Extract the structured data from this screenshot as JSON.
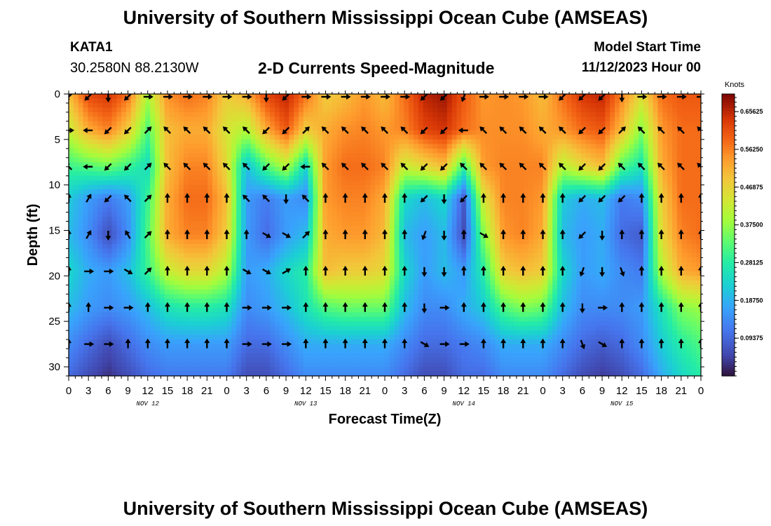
{
  "header": {
    "title": "University of Southern Mississippi Ocean Cube (AMSEAS)",
    "station_id": "KATA1",
    "coordinates": "30.2580N  88.2130W",
    "subtitle": "2-D Currents Speed-Magnitude",
    "model_start_label": "Model Start Time",
    "model_start_value": "11/12/2023 Hour 00"
  },
  "footer": {
    "title": "University of Southern Mississippi Ocean Cube (AMSEAS)"
  },
  "chart_data": {
    "type": "heatmap",
    "title": "2-D Currents Speed-Magnitude",
    "xlabel": "Forecast Time(Z)",
    "ylabel": "Depth (ft)",
    "xlim": [
      0,
      96
    ],
    "ylim": [
      31,
      0
    ],
    "x_ticks": [
      0,
      3,
      6,
      9,
      12,
      15,
      18,
      21,
      24,
      27,
      30,
      33,
      36,
      39,
      42,
      45,
      48,
      51,
      54,
      57,
      60,
      63,
      66,
      69,
      72,
      75,
      78,
      81,
      84,
      87,
      90,
      93,
      96
    ],
    "x_tick_labels": [
      "0",
      "3",
      "6",
      "9",
      "12",
      "15",
      "18",
      "21",
      "0",
      "3",
      "6",
      "9",
      "12",
      "15",
      "18",
      "21",
      "0",
      "3",
      "6",
      "9",
      "12",
      "15",
      "18",
      "21",
      "0",
      "3",
      "6",
      "9",
      "12",
      "15",
      "18",
      "21",
      "0"
    ],
    "y_ticks": [
      0,
      5,
      10,
      15,
      20,
      25,
      30
    ],
    "y_tick_labels": [
      "0",
      "5",
      "10",
      "15",
      "20",
      "25",
      "30"
    ],
    "day_labels": [
      {
        "x": 12,
        "label": "NOV 12"
      },
      {
        "x": 36,
        "label": "NOV 13"
      },
      {
        "x": 60,
        "label": "NOV 14"
      },
      {
        "x": 84,
        "label": "NOV 15"
      }
    ],
    "colorbar": {
      "unit": "Knots",
      "min": 0.0,
      "max": 0.7,
      "ticks": [
        0.09375,
        0.1875,
        0.28125,
        0.375,
        0.46875,
        0.5625,
        0.65625
      ],
      "tick_labels": [
        "0.09375",
        "0.18750",
        "0.28125",
        "0.37500",
        "0.46875",
        "0.56250",
        "0.65625"
      ]
    },
    "grid_time_hours": [
      0,
      3,
      6,
      9,
      12,
      15,
      18,
      21,
      24,
      27,
      30,
      33,
      36,
      39,
      42,
      45,
      48,
      51,
      54,
      57,
      60,
      63,
      66,
      69,
      72,
      75,
      78,
      81,
      84,
      87,
      90,
      93,
      96
    ],
    "grid_depths_ft": [
      0,
      4,
      8,
      11.5,
      15.5,
      19.5,
      23.5,
      27.5,
      31
    ],
    "speed_knots": [
      [
        0.5,
        0.62,
        0.64,
        0.58,
        0.4,
        0.55,
        0.58,
        0.56,
        0.48,
        0.52,
        0.62,
        0.66,
        0.58,
        0.48,
        0.5,
        0.54,
        0.5,
        0.58,
        0.66,
        0.68,
        0.6,
        0.54,
        0.55,
        0.54,
        0.5,
        0.58,
        0.64,
        0.66,
        0.56,
        0.46,
        0.58,
        0.6,
        0.6
      ],
      [
        0.42,
        0.52,
        0.56,
        0.48,
        0.32,
        0.5,
        0.52,
        0.52,
        0.44,
        0.4,
        0.52,
        0.6,
        0.48,
        0.52,
        0.55,
        0.56,
        0.54,
        0.56,
        0.62,
        0.64,
        0.58,
        0.55,
        0.55,
        0.55,
        0.52,
        0.54,
        0.58,
        0.6,
        0.5,
        0.36,
        0.54,
        0.58,
        0.58
      ],
      [
        0.3,
        0.32,
        0.34,
        0.3,
        0.25,
        0.5,
        0.56,
        0.56,
        0.46,
        0.2,
        0.32,
        0.4,
        0.24,
        0.54,
        0.58,
        0.58,
        0.56,
        0.42,
        0.46,
        0.5,
        0.3,
        0.54,
        0.56,
        0.56,
        0.56,
        0.4,
        0.46,
        0.5,
        0.32,
        0.26,
        0.52,
        0.58,
        0.58
      ],
      [
        0.22,
        0.16,
        0.12,
        0.16,
        0.3,
        0.52,
        0.58,
        0.58,
        0.5,
        0.16,
        0.12,
        0.16,
        0.14,
        0.54,
        0.56,
        0.56,
        0.52,
        0.24,
        0.2,
        0.24,
        0.08,
        0.44,
        0.56,
        0.56,
        0.54,
        0.22,
        0.18,
        0.2,
        0.12,
        0.14,
        0.48,
        0.58,
        0.58
      ],
      [
        0.2,
        0.14,
        0.06,
        0.14,
        0.32,
        0.52,
        0.56,
        0.56,
        0.48,
        0.16,
        0.1,
        0.16,
        0.2,
        0.52,
        0.54,
        0.54,
        0.5,
        0.2,
        0.16,
        0.2,
        0.06,
        0.36,
        0.54,
        0.56,
        0.52,
        0.2,
        0.16,
        0.18,
        0.1,
        0.08,
        0.46,
        0.56,
        0.58
      ],
      [
        0.24,
        0.18,
        0.16,
        0.2,
        0.3,
        0.42,
        0.46,
        0.46,
        0.4,
        0.16,
        0.18,
        0.24,
        0.28,
        0.5,
        0.48,
        0.48,
        0.46,
        0.24,
        0.16,
        0.2,
        0.16,
        0.28,
        0.48,
        0.5,
        0.48,
        0.24,
        0.16,
        0.18,
        0.14,
        0.12,
        0.4,
        0.52,
        0.54
      ],
      [
        0.2,
        0.16,
        0.14,
        0.16,
        0.2,
        0.26,
        0.28,
        0.28,
        0.26,
        0.14,
        0.16,
        0.2,
        0.26,
        0.32,
        0.34,
        0.34,
        0.34,
        0.2,
        0.14,
        0.14,
        0.18,
        0.22,
        0.32,
        0.36,
        0.34,
        0.2,
        0.14,
        0.14,
        0.14,
        0.16,
        0.26,
        0.36,
        0.38
      ],
      [
        0.14,
        0.1,
        0.06,
        0.1,
        0.14,
        0.16,
        0.16,
        0.16,
        0.16,
        0.1,
        0.1,
        0.14,
        0.18,
        0.18,
        0.18,
        0.18,
        0.18,
        0.14,
        0.1,
        0.1,
        0.12,
        0.14,
        0.18,
        0.18,
        0.18,
        0.14,
        0.1,
        0.08,
        0.1,
        0.14,
        0.22,
        0.28,
        0.32
      ],
      [
        0.1,
        0.06,
        0.03,
        0.06,
        0.1,
        0.12,
        0.12,
        0.12,
        0.12,
        0.06,
        0.06,
        0.1,
        0.14,
        0.14,
        0.14,
        0.14,
        0.14,
        0.1,
        0.06,
        0.06,
        0.1,
        0.1,
        0.14,
        0.14,
        0.14,
        0.1,
        0.06,
        0.04,
        0.06,
        0.1,
        0.18,
        0.24,
        0.28
      ]
    ],
    "vector_depths_ft": [
      0,
      4,
      8,
      11.5,
      15.5,
      19.5,
      23.5,
      27.5
    ],
    "vector_direction_deg": [
      [
        225,
        225,
        180,
        225,
        90,
        90,
        90,
        90,
        90,
        90,
        180,
        225,
        90,
        90,
        90,
        90,
        90,
        90,
        225,
        225,
        200,
        90,
        90,
        90,
        90,
        225,
        225,
        225,
        180,
        90,
        90,
        90,
        90
      ],
      [
        90,
        270,
        225,
        225,
        45,
        315,
        315,
        315,
        315,
        315,
        225,
        225,
        45,
        315,
        315,
        315,
        315,
        315,
        225,
        225,
        270,
        315,
        315,
        315,
        315,
        315,
        225,
        225,
        45,
        315,
        315,
        315,
        315
      ],
      [
        315,
        270,
        225,
        225,
        45,
        315,
        315,
        315,
        315,
        315,
        225,
        225,
        270,
        315,
        315,
        315,
        315,
        315,
        225,
        225,
        315,
        315,
        315,
        315,
        315,
        315,
        225,
        225,
        315,
        315,
        315,
        315,
        315
      ],
      [
        0,
        30,
        225,
        315,
        45,
        0,
        0,
        0,
        0,
        315,
        315,
        180,
        315,
        0,
        0,
        0,
        0,
        0,
        225,
        180,
        225,
        0,
        0,
        0,
        0,
        0,
        225,
        225,
        225,
        0,
        0,
        0,
        0
      ],
      [
        0,
        30,
        180,
        330,
        45,
        0,
        0,
        0,
        0,
        0,
        120,
        120,
        45,
        0,
        0,
        0,
        0,
        0,
        200,
        180,
        0,
        120,
        0,
        0,
        0,
        0,
        225,
        180,
        0,
        0,
        0,
        0,
        0
      ],
      [
        0,
        90,
        90,
        120,
        45,
        0,
        0,
        0,
        0,
        120,
        120,
        60,
        0,
        0,
        0,
        0,
        0,
        0,
        180,
        180,
        0,
        0,
        0,
        0,
        0,
        0,
        200,
        180,
        160,
        0,
        0,
        0,
        0
      ],
      [
        0,
        0,
        90,
        90,
        0,
        0,
        0,
        0,
        0,
        90,
        90,
        90,
        0,
        0,
        0,
        0,
        0,
        0,
        180,
        90,
        0,
        0,
        0,
        0,
        0,
        0,
        180,
        90,
        0,
        0,
        0,
        0,
        0
      ],
      [
        0,
        90,
        90,
        0,
        0,
        0,
        0,
        0,
        0,
        90,
        90,
        90,
        0,
        0,
        0,
        0,
        0,
        0,
        120,
        90,
        90,
        0,
        0,
        0,
        0,
        0,
        160,
        120,
        0,
        0,
        0,
        0,
        0
      ]
    ]
  }
}
